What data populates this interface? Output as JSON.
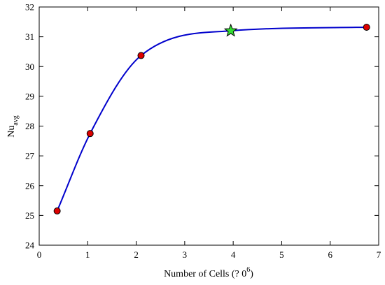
{
  "chart_data": {
    "type": "line",
    "xlabel": "Number of Cells (?  0",
    "xlabel_sup": "6",
    "xlabel_end": ")",
    "ylabel_main": "Nu",
    "ylabel_sub": "avg",
    "xlim": [
      0,
      7
    ],
    "ylim": [
      24,
      32
    ],
    "x_ticks": [
      0,
      1,
      2,
      3,
      4,
      5,
      6,
      7
    ],
    "y_ticks": [
      24,
      25,
      26,
      27,
      28,
      29,
      30,
      31,
      32
    ],
    "grid": false,
    "series": [
      {
        "x": [
          0.37,
          1.05,
          2.1,
          3.95,
          6.75
        ],
        "y": [
          25.15,
          27.75,
          30.37,
          31.2,
          31.32
        ],
        "line_color": "#0000cc",
        "marker_color": "#dd0000",
        "highlight_index": 3,
        "highlight_marker": "star",
        "highlight_color": "#33dd33"
      }
    ]
  }
}
